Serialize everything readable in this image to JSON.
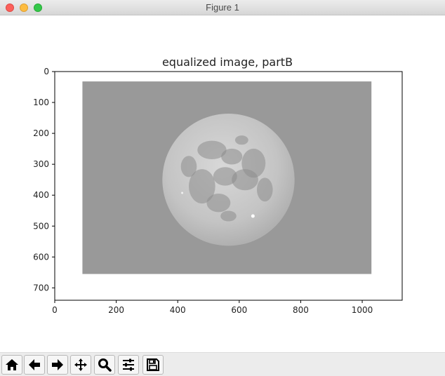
{
  "window": {
    "title": "Figure 1"
  },
  "toolbar": {
    "buttons": [
      {
        "icon": "home-icon"
      },
      {
        "icon": "back-arrow-icon"
      },
      {
        "icon": "forward-arrow-icon"
      },
      {
        "icon": "pan-move-icon"
      },
      {
        "icon": "zoom-magnifier-icon"
      },
      {
        "icon": "configure-subplots-icon"
      },
      {
        "icon": "save-floppy-icon"
      }
    ]
  },
  "colors": {
    "frame_gray": "#999999",
    "moon_light": "#d4d4d4",
    "moon_dark": "#8c8c8c",
    "background": "#ffffff"
  },
  "chart_data": {
    "type": "image",
    "title": "equalized image, partB",
    "xlabel": "",
    "ylabel": "",
    "xlim": [
      0,
      1130
    ],
    "ylim": [
      740,
      0
    ],
    "x_ticks": [
      0,
      200,
      400,
      600,
      800,
      1000
    ],
    "y_ticks": [
      0,
      100,
      200,
      300,
      400,
      500,
      600,
      700
    ],
    "grid": false,
    "image_content": {
      "gray_rect_x": [
        90,
        1030
      ],
      "gray_rect_y": [
        32,
        655
      ],
      "moon_center": [
        565,
        350
      ],
      "moon_radius": 215
    }
  }
}
